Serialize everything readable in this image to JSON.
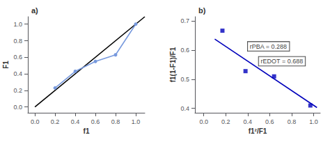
{
  "chart_data": [
    {
      "type": "scatter",
      "title": "a)",
      "xlabel": "f1",
      "ylabel": "F1",
      "xlim": [
        -0.07,
        1.09
      ],
      "ylim": [
        -0.07,
        1.09
      ],
      "xticks": [
        {
          "value": 0.0,
          "label": "0.0"
        },
        0.2,
        0.4,
        0.6,
        0.8,
        {
          "value": 1.0,
          "label": "1.0"
        }
      ],
      "yticks": [
        {
          "value": 0.0,
          "label": "0.0"
        },
        0.2,
        0.4,
        0.6,
        0.8,
        {
          "value": 1.0,
          "label": "1.0"
        }
      ],
      "grid": false,
      "series": [
        {
          "type": "line",
          "color": "black",
          "x": [
            0,
            1.09
          ],
          "values": [
            0,
            1.09
          ]
        },
        {
          "type": "line",
          "marker": "circle",
          "color": "#7799dd",
          "x": [
            0.2,
            0.4,
            0.6,
            0.8,
            1.0
          ],
          "values": [
            0.23,
            0.43,
            0.55,
            0.63,
            1.0
          ]
        }
      ]
    },
    {
      "type": "scatter",
      "title": "b)",
      "xlabel": "f1²/F1",
      "ylabel": "f1(1-F1)/F1",
      "xlim": [
        -0.08,
        1.06
      ],
      "ylim": [
        0.385,
        0.715
      ],
      "xticks": [
        {
          "value": 0.0,
          "label": "0.0"
        },
        0.2,
        0.4,
        0.6,
        0.8,
        {
          "value": 1.0,
          "label": "1.0"
        }
      ],
      "yticks": [
        0.4,
        0.5,
        0.6,
        0.7
      ],
      "grid": false,
      "series": [
        {
          "type": "line",
          "color": "#0000bb",
          "x": [
            0.1,
            1.03
          ],
          "values": [
            0.638,
            0.403
          ]
        },
        {
          "type": "scatter",
          "marker": "square",
          "color": "#0000bb",
          "x": [
            0.17,
            0.38,
            0.64,
            0.97
          ],
          "values": [
            0.667,
            0.528,
            0.51,
            0.41
          ]
        }
      ],
      "annotations": [
        {
          "text": "rPBA = 0.288",
          "x": 0.4,
          "y": 0.613
        },
        {
          "text": "rEDOT = 0.688",
          "x": 0.5,
          "y": 0.562
        }
      ]
    }
  ]
}
